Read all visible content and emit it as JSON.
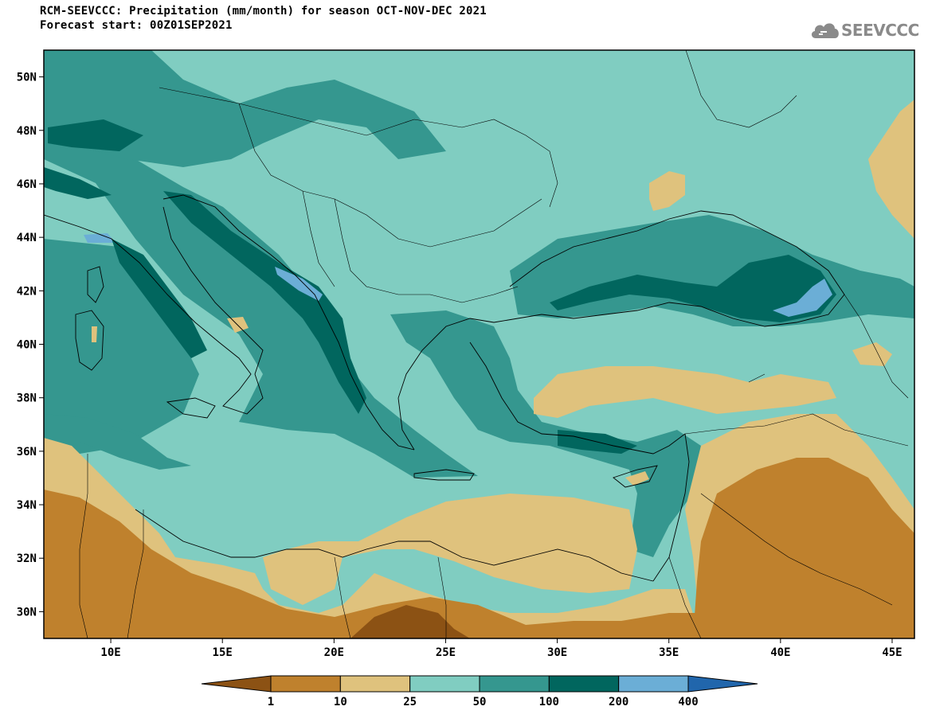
{
  "title_line1": "RCM-SEEVCCC: Precipitation (mm/month) for season OCT-NOV-DEC 2021",
  "title_line2": "Forecast start: 00Z01SEP2021",
  "logo_text": "SEEVCCC",
  "logo_icon": "cloud-icon",
  "map": {
    "lon_range": [
      7,
      46
    ],
    "lat_range": [
      29,
      51
    ],
    "lat_ticks": [
      {
        "v": 50,
        "label": "50N"
      },
      {
        "v": 48,
        "label": "48N"
      },
      {
        "v": 46,
        "label": "46N"
      },
      {
        "v": 44,
        "label": "44N"
      },
      {
        "v": 42,
        "label": "42N"
      },
      {
        "v": 40,
        "label": "40N"
      },
      {
        "v": 38,
        "label": "38N"
      },
      {
        "v": 36,
        "label": "36N"
      },
      {
        "v": 34,
        "label": "34N"
      },
      {
        "v": 32,
        "label": "32N"
      },
      {
        "v": 30,
        "label": "30N"
      }
    ],
    "lon_ticks": [
      {
        "v": 10,
        "label": "10E"
      },
      {
        "v": 15,
        "label": "15E"
      },
      {
        "v": 20,
        "label": "20E"
      },
      {
        "v": 25,
        "label": "25E"
      },
      {
        "v": 30,
        "label": "30E"
      },
      {
        "v": 35,
        "label": "35E"
      },
      {
        "v": 40,
        "label": "40E"
      },
      {
        "v": 45,
        "label": "45E"
      }
    ]
  },
  "legend": {
    "colors": [
      "#8c5214",
      "#bf812d",
      "#dfc27d",
      "#80cdc1",
      "#35978f",
      "#01665e",
      "#6baed6",
      "#2166ac"
    ],
    "labels": [
      "1",
      "10",
      "25",
      "50",
      "100",
      "200",
      "400"
    ]
  },
  "colors": {
    "very_dry": "#8c5214",
    "dry": "#bf812d",
    "light": "#dfc27d",
    "moderate": "#80cdc1",
    "wet": "#35978f",
    "very_wet": "#01665e",
    "extreme": "#6baed6"
  }
}
